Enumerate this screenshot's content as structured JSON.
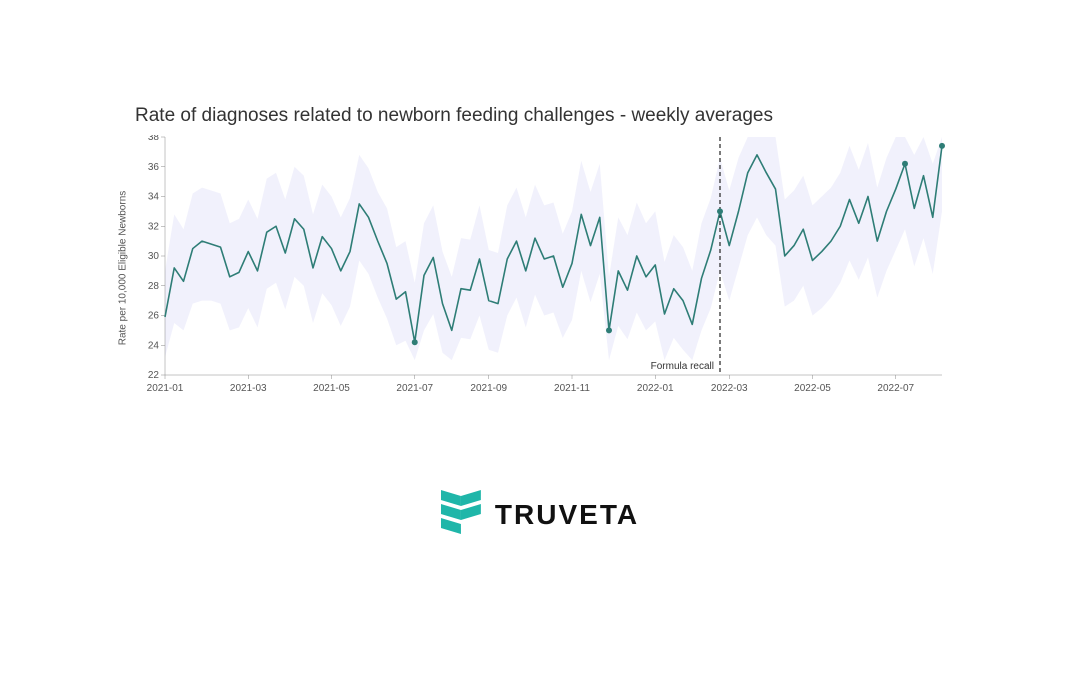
{
  "chart": {
    "type": "line",
    "title": "Rate of diagnoses related to newborn feeding challenges - weekly averages",
    "y_label": "Rate per 10,000 Eligible Newborns",
    "title_fontsize": 19,
    "title_color": "#333333",
    "label_fontsize": 10,
    "tick_fontsize": 10,
    "background": "#ffffff",
    "line_color": "#2e7d76",
    "line_width": 1.6,
    "band_color": "#d8d8f5",
    "band_opacity": 0.35,
    "marker_radius": 3.0,
    "x_domain": [
      0,
      84
    ],
    "y_domain": [
      22,
      38
    ],
    "y_ticks": [
      22,
      24,
      26,
      28,
      30,
      32,
      34,
      36,
      38
    ],
    "x_tick_labels": [
      "2021-01",
      "2021-03",
      "2021-05",
      "2021-07",
      "2021-09",
      "2021-11",
      "2022-01",
      "2022-03",
      "2022-05",
      "2022-07"
    ],
    "x_tick_indices": [
      0,
      9,
      18,
      27,
      35,
      44,
      53,
      61,
      70,
      79
    ],
    "annotation": {
      "label": "Formula recall",
      "x_index": 60,
      "line_color": "#222222",
      "dash": "4 3"
    },
    "series": {
      "x": [
        0,
        1,
        2,
        3,
        4,
        5,
        6,
        7,
        8,
        9,
        10,
        11,
        12,
        13,
        14,
        15,
        16,
        17,
        18,
        19,
        20,
        21,
        22,
        23,
        24,
        25,
        26,
        27,
        28,
        29,
        30,
        31,
        32,
        33,
        34,
        35,
        36,
        37,
        38,
        39,
        40,
        41,
        42,
        43,
        44,
        45,
        46,
        47,
        48,
        49,
        50,
        51,
        52,
        53,
        54,
        55,
        56,
        57,
        58,
        59,
        60,
        61,
        62,
        63,
        64,
        65,
        66,
        67,
        68,
        69,
        70,
        71,
        72,
        73,
        74,
        75,
        76,
        77,
        78,
        79,
        80,
        81,
        82,
        83,
        84
      ],
      "y": [
        25.9,
        29.2,
        28.3,
        30.5,
        31.0,
        30.8,
        30.6,
        28.6,
        28.9,
        30.3,
        29.0,
        31.6,
        32.0,
        30.2,
        32.5,
        31.8,
        29.2,
        31.3,
        30.5,
        29.0,
        30.3,
        33.5,
        32.6,
        31.0,
        29.5,
        27.1,
        27.6,
        24.2,
        28.7,
        29.9,
        26.8,
        25.0,
        27.8,
        27.7,
        29.8,
        27.0,
        26.8,
        29.8,
        31.0,
        29.0,
        31.2,
        29.8,
        30.0,
        27.9,
        29.5,
        32.8,
        30.7,
        32.6,
        25.0,
        29.0,
        27.7,
        30.0,
        28.6,
        29.4,
        26.1,
        27.8,
        27.0,
        25.4,
        28.5,
        30.4,
        33.0,
        30.7,
        33.0,
        35.6,
        36.8,
        35.6,
        34.5,
        30.0,
        30.7,
        31.8,
        29.7,
        30.3,
        31.0,
        32.0,
        33.8,
        32.2,
        34.0,
        31.0,
        33.0,
        34.5,
        36.2,
        33.2,
        35.4,
        32.6,
        37.4
      ],
      "band_lower": [
        23.2,
        25.5,
        25.0,
        26.8,
        27.0,
        27.0,
        26.8,
        25.0,
        25.2,
        26.5,
        25.2,
        27.8,
        28.2,
        26.4,
        28.6,
        28.0,
        25.5,
        27.5,
        26.7,
        25.3,
        26.6,
        29.7,
        28.8,
        27.2,
        25.8,
        24.0,
        24.3,
        23.0,
        25.0,
        26.1,
        23.5,
        23.0,
        24.5,
        24.4,
        26.0,
        23.7,
        23.5,
        26.0,
        27.2,
        25.2,
        27.4,
        26.0,
        26.2,
        24.5,
        25.7,
        29.0,
        26.9,
        28.8,
        23.0,
        25.3,
        24.4,
        26.2,
        25.0,
        25.6,
        23.0,
        24.5,
        23.7,
        23.0,
        25.0,
        26.5,
        29.0,
        27.0,
        29.2,
        31.4,
        32.6,
        31.4,
        30.7,
        26.6,
        27.0,
        28.0,
        26.0,
        26.5,
        27.2,
        28.2,
        29.7,
        28.4,
        29.9,
        27.2,
        29.0,
        30.4,
        31.8,
        29.3,
        31.2,
        28.8,
        33.0
      ],
      "band_upper": [
        29.0,
        32.8,
        31.8,
        34.2,
        34.6,
        34.4,
        34.2,
        32.2,
        32.5,
        33.8,
        32.5,
        35.2,
        35.6,
        33.8,
        36.0,
        35.4,
        32.8,
        34.8,
        34.0,
        32.6,
        33.9,
        36.8,
        35.9,
        34.3,
        33.2,
        30.6,
        31.0,
        28.2,
        32.2,
        33.4,
        30.3,
        28.6,
        31.2,
        31.1,
        33.4,
        30.4,
        30.2,
        33.4,
        34.6,
        32.6,
        34.8,
        33.4,
        33.6,
        31.5,
        33.0,
        36.4,
        34.3,
        36.2,
        28.6,
        32.6,
        31.4,
        33.6,
        32.2,
        33.0,
        29.6,
        31.4,
        30.6,
        29.0,
        32.2,
        33.9,
        36.6,
        34.4,
        36.6,
        38.0,
        38.0,
        38.0,
        38.0,
        33.8,
        34.4,
        35.4,
        33.4,
        34.0,
        34.6,
        35.6,
        37.4,
        35.8,
        37.6,
        34.6,
        36.6,
        38.0,
        38.0,
        36.8,
        38.0,
        36.2,
        38.0
      ],
      "markers_idx": [
        27,
        48,
        60,
        80,
        84
      ]
    }
  },
  "logo": {
    "text": "TRUVETA",
    "mark_color": "#1fb6a9",
    "text_color": "#111111"
  }
}
